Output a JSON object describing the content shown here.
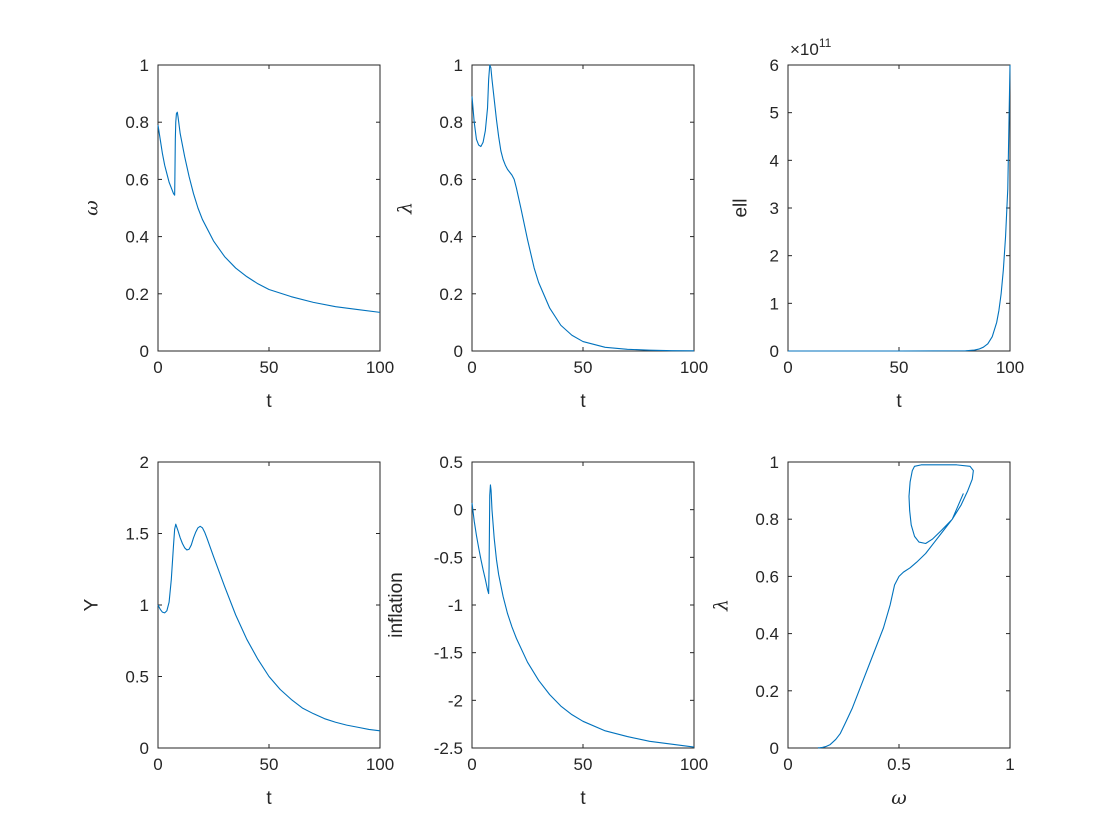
{
  "colors": {
    "line": "#0072BD",
    "axes": "#262626",
    "background": "#ffffff"
  },
  "chart_data": [
    {
      "type": "line",
      "xlabel": "t",
      "ylabel": "ω",
      "xlim": [
        0,
        100
      ],
      "ylim": [
        0,
        1
      ],
      "xticks": [
        0,
        50,
        100
      ],
      "yticks": [
        0,
        0.2,
        0.4,
        0.6,
        0.8,
        1
      ],
      "ytick_labels": [
        "0",
        "0.2",
        "0.4",
        "0.6",
        "0.8",
        "1"
      ],
      "points": [
        [
          0,
          0.79
        ],
        [
          1,
          0.74
        ],
        [
          2,
          0.69
        ],
        [
          3,
          0.65
        ],
        [
          4,
          0.62
        ],
        [
          5,
          0.59
        ],
        [
          6,
          0.57
        ],
        [
          7,
          0.55
        ],
        [
          7.5,
          0.545
        ],
        [
          7.6,
          0.6
        ],
        [
          7.8,
          0.74
        ],
        [
          8,
          0.8
        ],
        [
          8.3,
          0.83
        ],
        [
          8.7,
          0.835
        ],
        [
          9,
          0.82
        ],
        [
          10,
          0.76
        ],
        [
          12,
          0.68
        ],
        [
          14,
          0.61
        ],
        [
          16,
          0.55
        ],
        [
          18,
          0.5
        ],
        [
          20,
          0.46
        ],
        [
          25,
          0.385
        ],
        [
          30,
          0.33
        ],
        [
          35,
          0.29
        ],
        [
          40,
          0.26
        ],
        [
          45,
          0.235
        ],
        [
          50,
          0.215
        ],
        [
          60,
          0.19
        ],
        [
          70,
          0.17
        ],
        [
          80,
          0.155
        ],
        [
          90,
          0.145
        ],
        [
          100,
          0.135
        ]
      ]
    },
    {
      "type": "line",
      "xlabel": "t",
      "ylabel": "λ",
      "xlim": [
        0,
        100
      ],
      "ylim": [
        0,
        1
      ],
      "xticks": [
        0,
        50,
        100
      ],
      "yticks": [
        0,
        0.2,
        0.4,
        0.6,
        0.8,
        1
      ],
      "ytick_labels": [
        "0",
        "0.2",
        "0.4",
        "0.6",
        "0.8",
        "1"
      ],
      "points": [
        [
          0,
          0.89
        ],
        [
          1,
          0.8
        ],
        [
          2,
          0.74
        ],
        [
          3,
          0.72
        ],
        [
          4,
          0.715
        ],
        [
          5,
          0.73
        ],
        [
          6,
          0.77
        ],
        [
          7,
          0.85
        ],
        [
          7.5,
          0.95
        ],
        [
          8,
          1.0
        ],
        [
          8.5,
          0.99
        ],
        [
          9,
          0.95
        ],
        [
          10,
          0.88
        ],
        [
          11,
          0.81
        ],
        [
          12,
          0.75
        ],
        [
          13,
          0.7
        ],
        [
          14,
          0.67
        ],
        [
          15,
          0.65
        ],
        [
          16,
          0.635
        ],
        [
          17,
          0.625
        ],
        [
          18,
          0.615
        ],
        [
          19,
          0.6
        ],
        [
          20,
          0.57
        ],
        [
          22,
          0.5
        ],
        [
          25,
          0.39
        ],
        [
          28,
          0.29
        ],
        [
          30,
          0.24
        ],
        [
          35,
          0.15
        ],
        [
          40,
          0.09
        ],
        [
          45,
          0.055
        ],
        [
          50,
          0.033
        ],
        [
          60,
          0.013
        ],
        [
          70,
          0.006
        ],
        [
          80,
          0.003
        ],
        [
          90,
          0.001
        ],
        [
          100,
          0.0005
        ]
      ]
    },
    {
      "type": "line",
      "xlabel": "t",
      "ylabel": "ell",
      "xlim": [
        0,
        100
      ],
      "ylim": [
        0,
        6
      ],
      "xticks": [
        0,
        50,
        100
      ],
      "yticks": [
        0,
        1,
        2,
        3,
        4,
        5,
        6
      ],
      "ytick_labels": [
        "0",
        "1",
        "2",
        "3",
        "4",
        "5",
        "6"
      ],
      "y_exponent_base": "×10",
      "y_exponent": "11",
      "points": [
        [
          0,
          0
        ],
        [
          50,
          0
        ],
        [
          80,
          0.005
        ],
        [
          84,
          0.02
        ],
        [
          86,
          0.04
        ],
        [
          88,
          0.08
        ],
        [
          90,
          0.15
        ],
        [
          92,
          0.3
        ],
        [
          94,
          0.6
        ],
        [
          95,
          0.85
        ],
        [
          96,
          1.2
        ],
        [
          97,
          1.7
        ],
        [
          98,
          2.4
        ],
        [
          99,
          3.4
        ],
        [
          100,
          6.0
        ]
      ]
    },
    {
      "type": "line",
      "xlabel": "t",
      "ylabel": "Y",
      "xlim": [
        0,
        100
      ],
      "ylim": [
        0,
        2
      ],
      "xticks": [
        0,
        50,
        100
      ],
      "yticks": [
        0,
        0.5,
        1,
        1.5,
        2
      ],
      "ytick_labels": [
        "0",
        "0.5",
        "1",
        "1.5",
        "2"
      ],
      "points": [
        [
          0,
          1.0
        ],
        [
          1,
          0.97
        ],
        [
          2,
          0.95
        ],
        [
          3,
          0.945
        ],
        [
          4,
          0.96
        ],
        [
          5,
          1.02
        ],
        [
          6,
          1.18
        ],
        [
          7,
          1.42
        ],
        [
          7.5,
          1.53
        ],
        [
          8,
          1.565
        ],
        [
          9,
          1.52
        ],
        [
          10,
          1.47
        ],
        [
          11,
          1.43
        ],
        [
          12,
          1.4
        ],
        [
          13,
          1.385
        ],
        [
          14,
          1.39
        ],
        [
          15,
          1.42
        ],
        [
          16,
          1.47
        ],
        [
          17,
          1.51
        ],
        [
          18,
          1.54
        ],
        [
          19,
          1.55
        ],
        [
          20,
          1.54
        ],
        [
          21,
          1.51
        ],
        [
          22,
          1.47
        ],
        [
          25,
          1.34
        ],
        [
          30,
          1.13
        ],
        [
          35,
          0.93
        ],
        [
          40,
          0.76
        ],
        [
          45,
          0.62
        ],
        [
          50,
          0.5
        ],
        [
          55,
          0.41
        ],
        [
          60,
          0.34
        ],
        [
          65,
          0.28
        ],
        [
          70,
          0.24
        ],
        [
          75,
          0.205
        ],
        [
          80,
          0.18
        ],
        [
          85,
          0.16
        ],
        [
          90,
          0.145
        ],
        [
          95,
          0.13
        ],
        [
          100,
          0.12
        ]
      ]
    },
    {
      "type": "line",
      "xlabel": "t",
      "ylabel": "inflation",
      "xlim": [
        0,
        100
      ],
      "ylim": [
        -2.5,
        0.5
      ],
      "xticks": [
        0,
        50,
        100
      ],
      "yticks": [
        -2.5,
        -2,
        -1.5,
        -1,
        -0.5,
        0,
        0.5
      ],
      "ytick_labels": [
        "-2.5",
        "-2",
        "-1.5",
        "-1",
        "-0.5",
        "0",
        "0.5"
      ],
      "points": [
        [
          0,
          0.07
        ],
        [
          1,
          -0.12
        ],
        [
          2,
          -0.27
        ],
        [
          3,
          -0.4
        ],
        [
          4,
          -0.52
        ],
        [
          5,
          -0.63
        ],
        [
          6,
          -0.73
        ],
        [
          7,
          -0.84
        ],
        [
          7.5,
          -0.88
        ],
        [
          7.7,
          -0.6
        ],
        [
          7.9,
          -0.1
        ],
        [
          8,
          0.15
        ],
        [
          8.3,
          0.26
        ],
        [
          8.6,
          0.2
        ],
        [
          9,
          0.0
        ],
        [
          10,
          -0.3
        ],
        [
          11,
          -0.52
        ],
        [
          12,
          -0.68
        ],
        [
          14,
          -0.91
        ],
        [
          16,
          -1.09
        ],
        [
          18,
          -1.23
        ],
        [
          20,
          -1.35
        ],
        [
          25,
          -1.6
        ],
        [
          30,
          -1.79
        ],
        [
          35,
          -1.94
        ],
        [
          40,
          -2.06
        ],
        [
          45,
          -2.15
        ],
        [
          50,
          -2.22
        ],
        [
          60,
          -2.32
        ],
        [
          70,
          -2.38
        ],
        [
          80,
          -2.43
        ],
        [
          90,
          -2.46
        ],
        [
          100,
          -2.49
        ]
      ]
    },
    {
      "type": "line",
      "xlabel": "ω",
      "ylabel": "λ",
      "xlim": [
        0,
        1
      ],
      "ylim": [
        0,
        1
      ],
      "xticks": [
        0,
        0.5,
        1
      ],
      "yticks": [
        0,
        0.2,
        0.4,
        0.6,
        0.8,
        1
      ],
      "ytick_labels": [
        "0",
        "0.2",
        "0.4",
        "0.6",
        "0.8",
        "1"
      ],
      "xtick_labels": [
        "0",
        "0.5",
        "1"
      ],
      "points": [
        [
          0.79,
          0.89
        ],
        [
          0.74,
          0.8
        ],
        [
          0.69,
          0.76
        ],
        [
          0.65,
          0.73
        ],
        [
          0.62,
          0.715
        ],
        [
          0.59,
          0.72
        ],
        [
          0.57,
          0.74
        ],
        [
          0.555,
          0.78
        ],
        [
          0.548,
          0.83
        ],
        [
          0.545,
          0.88
        ],
        [
          0.55,
          0.93
        ],
        [
          0.56,
          0.97
        ],
        [
          0.57,
          0.985
        ],
        [
          0.6,
          0.99
        ],
        [
          0.68,
          0.99
        ],
        [
          0.76,
          0.99
        ],
        [
          0.82,
          0.985
        ],
        [
          0.835,
          0.97
        ],
        [
          0.83,
          0.94
        ],
        [
          0.81,
          0.9
        ],
        [
          0.78,
          0.85
        ],
        [
          0.74,
          0.8
        ],
        [
          0.7,
          0.76
        ],
        [
          0.66,
          0.72
        ],
        [
          0.62,
          0.68
        ],
        [
          0.58,
          0.65
        ],
        [
          0.55,
          0.63
        ],
        [
          0.52,
          0.615
        ],
        [
          0.5,
          0.6
        ],
        [
          0.48,
          0.57
        ],
        [
          0.46,
          0.5
        ],
        [
          0.43,
          0.42
        ],
        [
          0.385,
          0.33
        ],
        [
          0.33,
          0.22
        ],
        [
          0.29,
          0.14
        ],
        [
          0.26,
          0.09
        ],
        [
          0.235,
          0.05
        ],
        [
          0.215,
          0.03
        ],
        [
          0.19,
          0.012
        ],
        [
          0.17,
          0.005
        ],
        [
          0.155,
          0.002
        ],
        [
          0.145,
          0.001
        ],
        [
          0.135,
          0.0005
        ]
      ]
    }
  ]
}
